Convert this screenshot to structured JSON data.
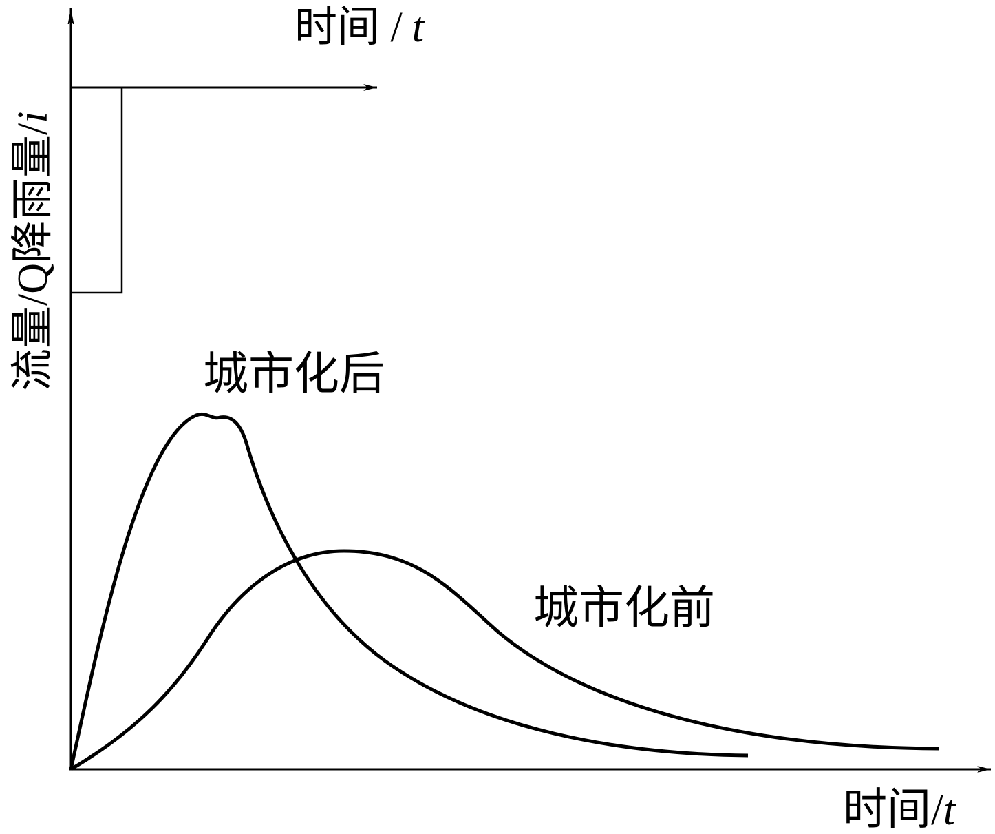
{
  "rain_axis_label": {
    "text": "时间 /",
    "var": "t"
  },
  "y_axis_label": {
    "text": "流量/Q降雨量/",
    "var": "i"
  },
  "curve_labels": {
    "after": "城市化后",
    "before": "城市化前"
  },
  "x_axis_label": {
    "text": "时间/",
    "var": "t"
  }
}
